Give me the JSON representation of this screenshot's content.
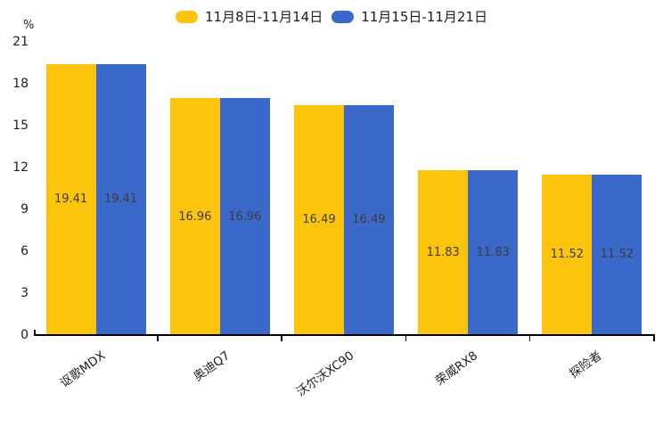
{
  "chart_data": {
    "type": "bar",
    "unit_label": "%",
    "categories": [
      "讴歌MDX",
      "奥迪Q7",
      "沃尔沃XC90",
      "荣威RX8",
      "探险者"
    ],
    "series": [
      {
        "name": "11月8日-11月14日",
        "color": "#FDC40D",
        "values": [
          19.41,
          16.96,
          16.49,
          11.83,
          11.52
        ]
      },
      {
        "name": "11月15日-11月21日",
        "color": "#3A69CA",
        "values": [
          19.41,
          16.96,
          16.49,
          11.83,
          11.52
        ]
      }
    ],
    "value_labels": [
      "19.41",
      "16.96",
      "16.49",
      "11.83",
      "11.52"
    ],
    "ylim": [
      0,
      21
    ],
    "yticks": [
      0,
      3,
      6,
      9,
      12,
      15,
      18,
      21
    ],
    "grid": false,
    "legend_position": "top",
    "value_label_position": "inside-center",
    "axis_color": "#000000",
    "label_color": "#1e1e1e",
    "value_label_color": "#3c3c3c"
  }
}
